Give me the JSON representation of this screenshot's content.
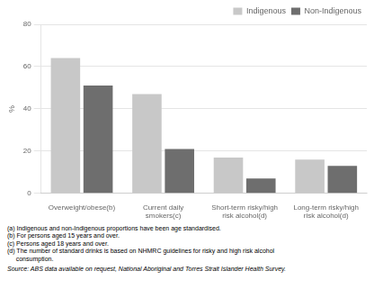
{
  "chart_data": {
    "type": "bar",
    "categories": [
      "Overweight/obese(b)",
      "Current daily\nsmokers(c)",
      "Short-term risky/high\nrisk alcohol(d)",
      "Long-term risky/high\nrisk alcohol(d)"
    ],
    "series": [
      {
        "name": "Indigenous",
        "color": "#c8c8c8",
        "values": [
          64,
          47,
          17,
          16
        ]
      },
      {
        "name": "Non-Indigenous",
        "color": "#6e6e6e",
        "values": [
          51,
          21,
          7,
          13
        ]
      }
    ],
    "ylabel": "%",
    "ylim": [
      0,
      80
    ],
    "yticks": [
      0,
      20,
      40,
      60,
      80
    ],
    "grid": true,
    "legend": "upper right",
    "annotations": [
      "(a) Indigenous and non-Indigenous proportions have been age standardised.\n(b) For persons aged 15 years and over.\n(c) Persons aged 18 years and over.\n(d) The number of standard drinks is based on NHMRC guidelines for risky and high risk alcohol\n     consumption.",
      "Source: ABS data available on request, National Aboriginal and Torres Strait Islander Health Survey."
    ]
  }
}
